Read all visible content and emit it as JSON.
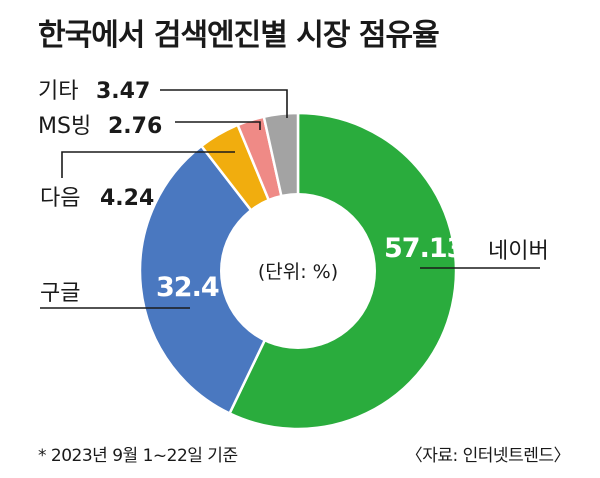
{
  "chart_data": {
    "type": "pie",
    "title": "한국에서 검색엔진별 시장 점유율",
    "unit_label": "(단위: %)",
    "slices": [
      {
        "name": "네이버",
        "value": 57.13,
        "value_label": "57.13",
        "color": "#2aac3d"
      },
      {
        "name": "구글",
        "value": 32.4,
        "value_label": "32.4",
        "color": "#4a78c0"
      },
      {
        "name": "다음",
        "value": 4.24,
        "value_label": "4.24",
        "color": "#f1ad0e"
      },
      {
        "name": "MS빙",
        "value": 2.76,
        "value_label": "2.76",
        "color": "#ef8a86"
      },
      {
        "name": "기타",
        "value": 3.47,
        "value_label": "3.47",
        "color": "#a3a3a3"
      }
    ],
    "footnote": "* 2023년 9월 1~22일 기준",
    "source": "〈자료: 인터넷트렌드〉"
  }
}
